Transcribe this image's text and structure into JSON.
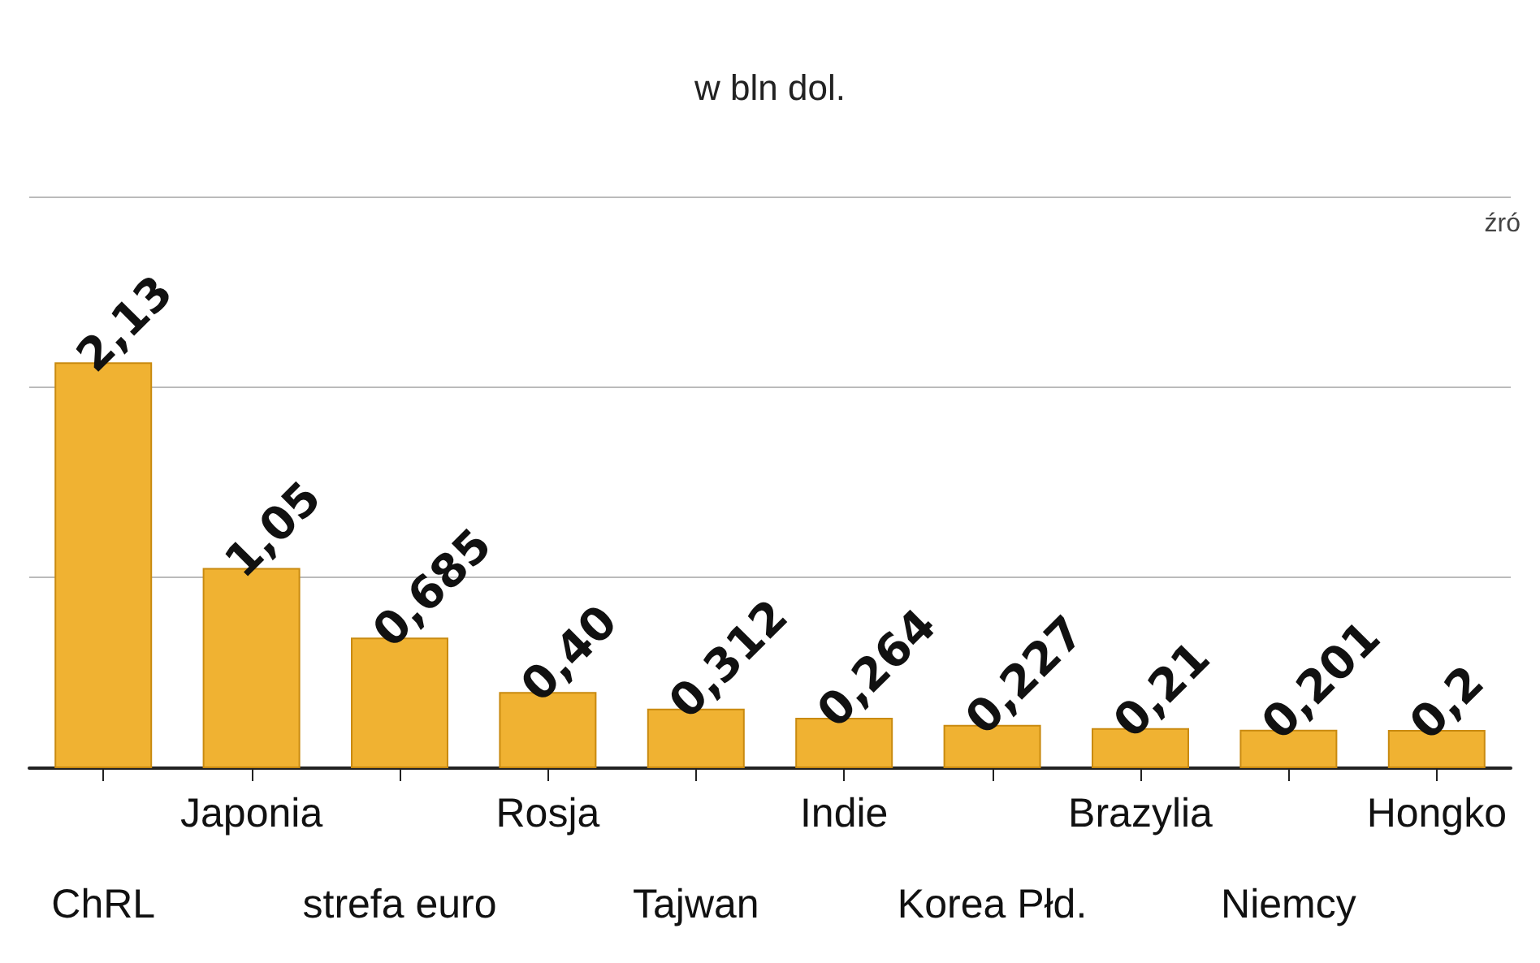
{
  "chart_data": {
    "type": "bar",
    "title": "w bln dol.",
    "categories": [
      "ChRL",
      "Japonia",
      "strefa euro",
      "Rosja",
      "Tajwan",
      "Indie",
      "Korea Płd.",
      "Brazylia",
      "Niemcy",
      "Hongko"
    ],
    "values": [
      2.13,
      1.05,
      0.685,
      0.4,
      0.312,
      0.264,
      0.227,
      0.21,
      0.201,
      0.2
    ],
    "value_labels": [
      "2,13",
      "1,05",
      "0,685",
      "0,40",
      "0,312",
      "0,264",
      "0,227",
      "0,21",
      "0,201",
      "0,2"
    ],
    "color": "#f0b232",
    "grid": "y",
    "ylim": [
      0,
      3
    ],
    "yticks": [
      {
        "value": 1,
        "label": null
      },
      {
        "value": 2,
        "label": null
      },
      {
        "value": 3,
        "label": null
      }
    ],
    "tick_labels": "x",
    "annotations": [
      "źró"
    ]
  }
}
